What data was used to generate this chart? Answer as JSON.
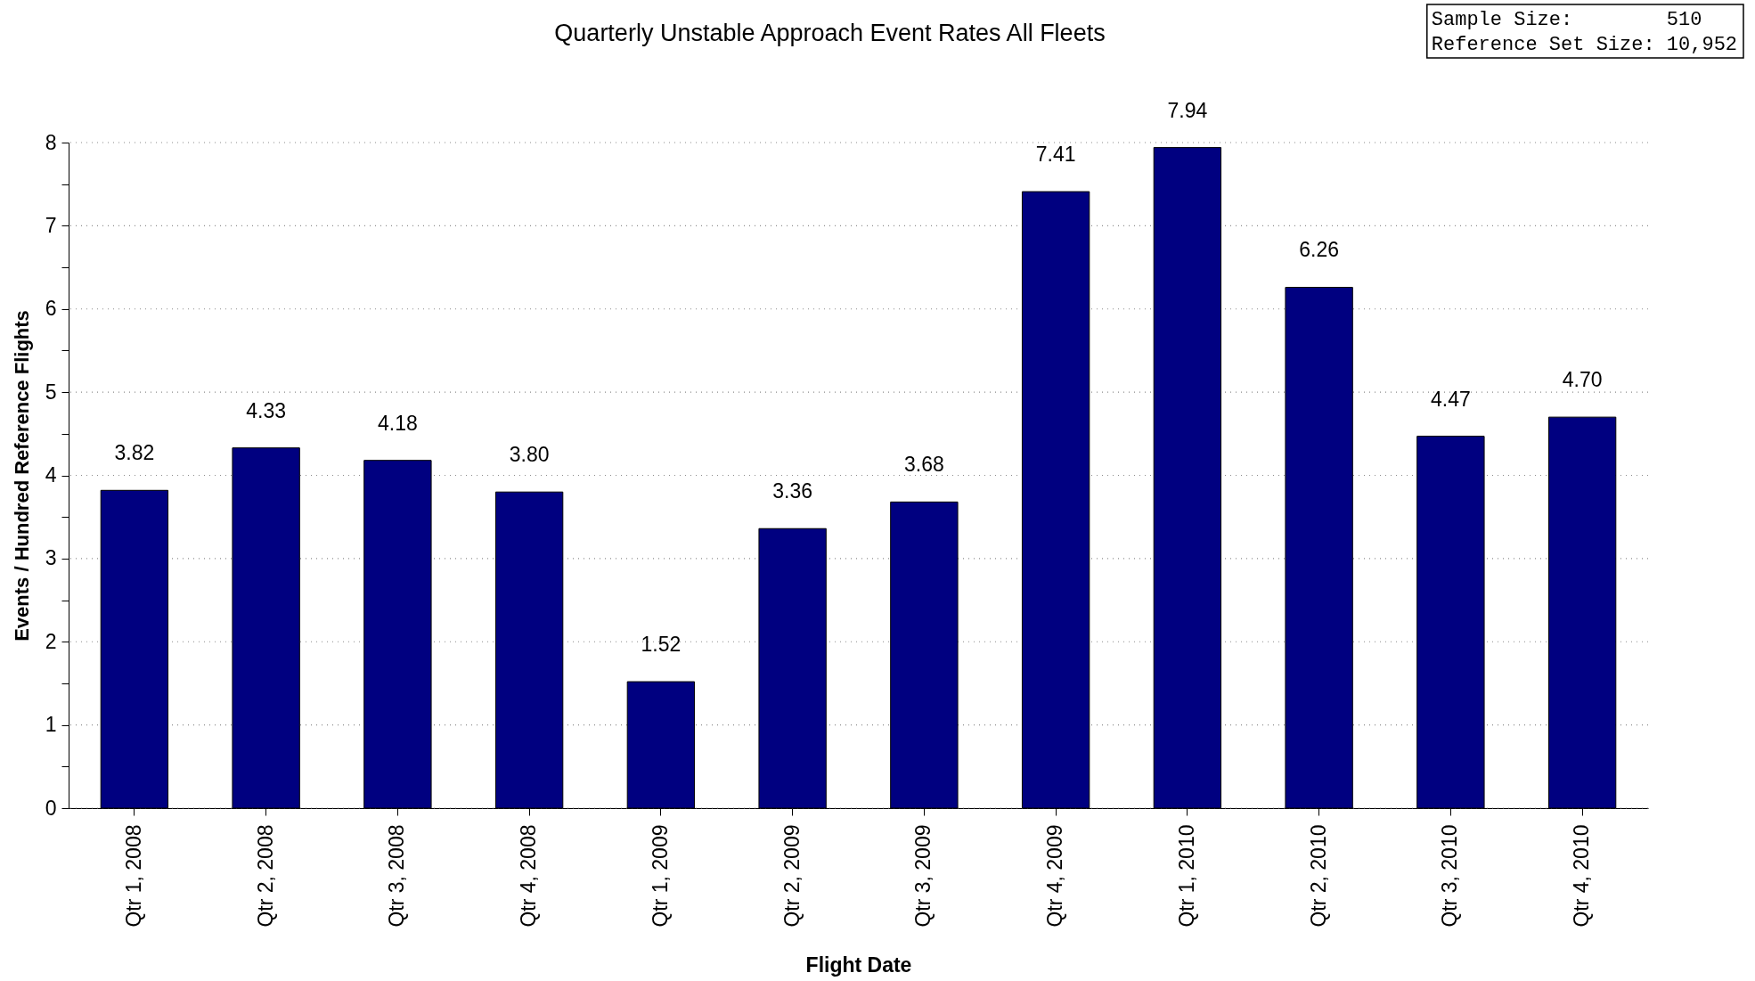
{
  "chart_data": {
    "type": "bar",
    "title": "Quarterly Unstable Approach Event Rates All Fleets",
    "xlabel": "Flight Date",
    "ylabel": "Events / Hundred Reference Flights",
    "annotations": [
      "Sample Size:        510",
      "Reference Set Size: 10,952"
    ],
    "categories": [
      "Qtr 1, 2008",
      "Qtr 2, 2008",
      "Qtr 3, 2008",
      "Qtr 4, 2008",
      "Qtr 1, 2009",
      "Qtr 2, 2009",
      "Qtr 3, 2009",
      "Qtr 4, 2009",
      "Qtr 1, 2010",
      "Qtr 2, 2010",
      "Qtr 3, 2010",
      "Qtr 4, 2010"
    ],
    "values": [
      3.82,
      4.33,
      4.18,
      3.8,
      1.52,
      3.36,
      3.68,
      7.41,
      7.94,
      6.26,
      4.47,
      4.7
    ],
    "value_labels": [
      "3.82",
      "4.33",
      "4.18",
      "3.80",
      "1.52",
      "3.36",
      "3.68",
      "7.41",
      "7.94",
      "6.26",
      "4.47",
      "4.70"
    ],
    "color": "#000080",
    "ylim": [
      0,
      8
    ],
    "yticks": [
      0,
      {
        "value": 0.5,
        "label": null
      },
      1,
      {
        "value": 1.5,
        "label": null
      },
      2,
      {
        "value": 2.5,
        "label": null
      },
      3,
      {
        "value": 3.5,
        "label": null
      },
      4,
      {
        "value": 4.5,
        "label": null
      },
      5,
      {
        "value": 5.5,
        "label": null
      },
      6,
      {
        "value": 6.5,
        "label": null
      },
      7,
      {
        "value": 7.5,
        "label": null
      },
      8
    ],
    "grid": "y"
  }
}
